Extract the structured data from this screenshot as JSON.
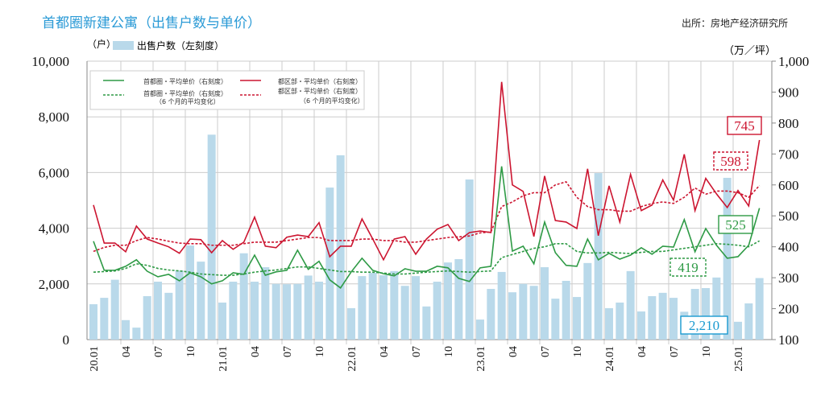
{
  "title": "首都圈新建公寓（出售户数与单价）",
  "source": "出所：房地产经济研究所",
  "colors": {
    "bars": "#b9d9ea",
    "green": "#2e9a45",
    "red": "#cc1530",
    "blue": "#1a9ad0"
  },
  "chart_data": {
    "type": "bar+line",
    "left_axis": {
      "unit": "（户）",
      "ylim": [
        0,
        10000
      ],
      "ticks": [
        "0",
        "2,000",
        "4,000",
        "6,000",
        "8,000",
        "10,000"
      ],
      "tick_values": [
        0,
        2000,
        4000,
        6000,
        8000,
        10000
      ]
    },
    "right_axis": {
      "unit": "（万／坪）",
      "ylim": [
        100,
        1000
      ],
      "ticks": [
        "100",
        "200",
        "300",
        "400",
        "500",
        "600",
        "700",
        "800",
        "900",
        "1,000"
      ],
      "tick_values": [
        100,
        200,
        300,
        400,
        500,
        600,
        700,
        800,
        900,
        1000
      ]
    },
    "x_tick_labels": [
      "20.01",
      "04",
      "07",
      "10",
      "21.01",
      "04",
      "07",
      "10",
      "22.01",
      "04",
      "07",
      "10",
      "23.01",
      "04",
      "07",
      "10",
      "24.01",
      "04",
      "07",
      "10",
      "25.01"
    ],
    "start_month": "2020.01",
    "months": 63,
    "bar_legend": "出售户数（左刻度）",
    "legend": {
      "green": "首都圈・平均单价（右刻度）",
      "green_avg": "首都圈・平均单价（右刻度）",
      "green_avg_note": "（6 个月的平均变化）",
      "red": "都区部・平均单价（右刻度）",
      "red_avg": "都区部・平均单价（右刻度）",
      "red_avg_note": "（6 个月的平均变化）"
    },
    "series": [
      {
        "name": "出售户数",
        "axis": "left",
        "type": "bar",
        "values": [
          1270,
          1500,
          2150,
          700,
          430,
          1560,
          2080,
          1680,
          2480,
          3380,
          2800,
          7360,
          1330,
          2080,
          3100,
          2080,
          2600,
          2000,
          1990,
          2000,
          2300,
          2080,
          5460,
          6620,
          1130,
          2280,
          2400,
          2310,
          2460,
          1930,
          2280,
          1190,
          2080,
          2770,
          2890,
          5750,
          720,
          1820,
          2430,
          1700,
          2000,
          1930,
          2600,
          1470,
          2110,
          1530,
          2750,
          5980,
          1130,
          1330,
          2460,
          1010,
          1560,
          1680,
          1500,
          1000,
          1820,
          1850,
          2230,
          5810,
          640,
          1300,
          2210
        ]
      },
      {
        "name": "都区部・平均单价",
        "axis": "right",
        "type": "line",
        "values": [
          535,
          412,
          412,
          384,
          467,
          425,
          412,
          400,
          379,
          425,
          423,
          381,
          420,
          392,
          415,
          496,
          402,
          397,
          431,
          438,
          433,
          478,
          368,
          402,
          402,
          490,
          425,
          358,
          425,
          433,
          376,
          425,
          457,
          472,
          420,
          446,
          451,
          446,
          933,
          600,
          579,
          433,
          629,
          485,
          480,
          459,
          652,
          436,
          597,
          480,
          634,
          517,
          535,
          616,
          551,
          699,
          517,
          621,
          571,
          527,
          582,
          532,
          745
        ]
      },
      {
        "name": "都区部・平均单价（6个月平均）",
        "axis": "right",
        "type": "dashed",
        "values": [
          385,
          398,
          405,
          405,
          420,
          430,
          425,
          418,
          412,
          410,
          410,
          405,
          405,
          405,
          410,
          415,
          415,
          415,
          420,
          425,
          430,
          430,
          420,
          420,
          420,
          425,
          425,
          420,
          420,
          415,
          415,
          420,
          425,
          430,
          432,
          435,
          445,
          448,
          530,
          545,
          565,
          575,
          575,
          600,
          610,
          560,
          530,
          520,
          520,
          515,
          515,
          530,
          540,
          545,
          540,
          560,
          590,
          570,
          580,
          580,
          575,
          560,
          598
        ]
      },
      {
        "name": "首都圈・平均单价",
        "axis": "right",
        "type": "line",
        "values": [
          418,
          324,
          324,
          337,
          358,
          321,
          303,
          311,
          290,
          316,
          303,
          280,
          290,
          316,
          311,
          373,
          308,
          319,
          324,
          389,
          327,
          353,
          293,
          267,
          319,
          363,
          324,
          313,
          306,
          329,
          321,
          321,
          337,
          332,
          298,
          288,
          332,
          337,
          660,
          386,
          402,
          345,
          480,
          381,
          340,
          337,
          425,
          358,
          379,
          360,
          373,
          397,
          376,
          402,
          399,
          488,
          384,
          459,
          405,
          363,
          368,
          405,
          525
        ]
      },
      {
        "name": "首都圈・平均单价（6个月平均）",
        "axis": "right",
        "type": "dashed",
        "values": [
          318,
          320,
          322,
          330,
          345,
          340,
          330,
          325,
          322,
          318,
          312,
          310,
          308,
          308,
          312,
          318,
          322,
          325,
          330,
          335,
          335,
          330,
          325,
          320,
          320,
          318,
          318,
          315,
          312,
          312,
          315,
          318,
          320,
          322,
          320,
          318,
          320,
          322,
          365,
          375,
          385,
          395,
          400,
          410,
          410,
          385,
          380,
          380,
          382,
          380,
          378,
          382,
          385,
          385,
          390,
          395,
          400,
          405,
          410,
          408,
          405,
          400,
          419
        ]
      }
    ],
    "annotations": {
      "red_last": "745",
      "red_avg_last": "598",
      "green_last": "525",
      "green_avg_last": "419",
      "bar_last": "2,210"
    }
  }
}
